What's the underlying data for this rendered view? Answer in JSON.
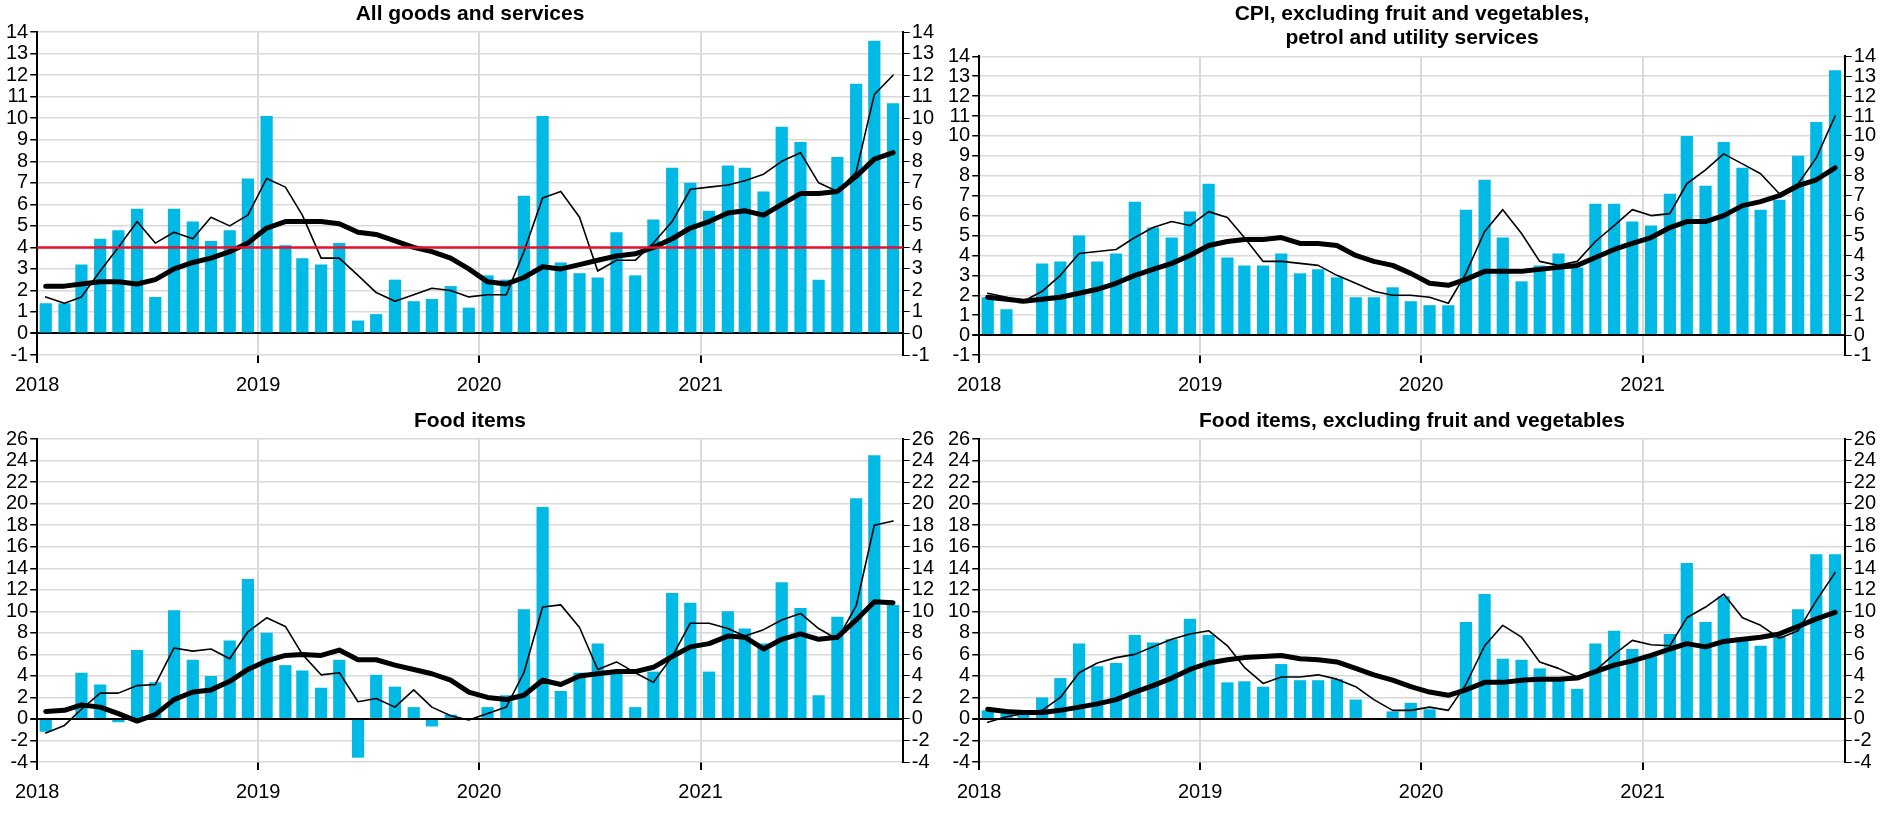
{
  "chart_data": [
    {
      "type": "bar",
      "title": "All goods and services",
      "x": [
        "2018-01-15",
        "2018-02-15",
        "2018-03-15",
        "2018-04-15",
        "2018-05-15",
        "2018-06-15",
        "2018-07-15",
        "2018-08-15",
        "2018-09-15",
        "2018-10-15",
        "2018-11-15",
        "2018-12-15",
        "2019-01-15",
        "2019-02-15",
        "2019-03-15",
        "2019-04-15",
        "2019-05-15",
        "2019-06-15",
        "2019-07-15",
        "2019-08-15",
        "2019-09-15",
        "2019-10-15",
        "2019-11-15",
        "2019-12-15",
        "2020-01-15",
        "2020-02-15",
        "2020-03-15",
        "2020-04-15",
        "2020-05-15",
        "2020-06-15",
        "2020-07-15",
        "2020-08-15",
        "2020-09-15",
        "2020-10-15",
        "2020-11-15",
        "2020-12-15",
        "2021-01-15",
        "2021-02-15",
        "2021-03-15",
        "2021-04-15",
        "2021-05-15",
        "2021-06-15",
        "2021-07-15",
        "2021-08-15",
        "2021-09-15",
        "2021-10-15",
        "2021-11-15"
      ],
      "series": [
        {
          "color": "#00b9e4",
          "values": [
            1.4,
            1.4,
            3.2,
            4.4,
            4.8,
            5.8,
            1.7,
            5.8,
            5.2,
            4.3,
            4.8,
            7.2,
            10.1,
            4.1,
            3.5,
            3.2,
            4.2,
            0.6,
            0.9,
            2.5,
            1.5,
            1.6,
            2.2,
            1.2,
            2.7,
            2.5,
            6.4,
            10.1,
            3.3,
            2.8,
            2.6,
            4.7,
            2.7,
            5.3,
            7.7,
            7.0,
            5.7,
            7.8,
            7.7,
            6.6,
            9.6,
            8.9,
            2.5,
            8.2,
            11.6,
            13.6,
            10.7
          ]
        },
        {
          "type": "line",
          "color": "#000000",
          "values": [
            1.7,
            1.4,
            1.7,
            2.9,
            4.0,
            5.2,
            4.2,
            4.7,
            4.4,
            5.4,
            5.0,
            5.5,
            7.2,
            6.8,
            5.5,
            3.5,
            3.5,
            2.7,
            1.9,
            1.5,
            1.8,
            2.1,
            2.0,
            1.7,
            1.8,
            1.8,
            3.8,
            6.3,
            6.6,
            5.4,
            2.9,
            3.4,
            3.4,
            4.2,
            5.2,
            6.7,
            6.8,
            6.9,
            7.1,
            7.4,
            8.0,
            8.4,
            7.0,
            6.6,
            7.5,
            11.1,
            12.0
          ]
        },
        {
          "type": "line",
          "color": "#000000",
          "values": [
            2.2,
            2.2,
            2.3,
            2.4,
            2.4,
            2.3,
            2.5,
            3.0,
            3.3,
            3.5,
            3.8,
            4.2,
            4.9,
            5.2,
            5.2,
            5.2,
            5.1,
            4.7,
            4.6,
            4.3,
            4.0,
            3.8,
            3.5,
            3.0,
            2.4,
            2.3,
            2.6,
            3.1,
            3.0,
            3.2,
            3.4,
            3.6,
            3.7,
            4.0,
            4.4,
            4.9,
            5.2,
            5.6,
            5.7,
            5.5,
            6.0,
            6.5,
            6.5,
            6.6,
            7.3,
            8.1,
            8.4
          ]
        }
      ],
      "xlim": [
        "2018-01",
        "2021-12"
      ],
      "xticks": [
        "2018",
        "2019",
        "2020",
        "2021"
      ],
      "ylim": [
        -1,
        14
      ],
      "yticks": [
        -1,
        0,
        1,
        2,
        3,
        4,
        5,
        6,
        7,
        8,
        9,
        10,
        11,
        12,
        13,
        14
      ],
      "y2lim": [
        -1,
        14
      ],
      "y2ticks": [
        -1,
        0,
        1,
        2,
        3,
        4,
        5,
        6,
        7,
        8,
        9,
        10,
        11,
        12,
        13,
        14
      ],
      "ref_lines": [
        {
          "axis": "y",
          "value": 4,
          "color": "#e8112d"
        }
      ],
      "grid": true,
      "legend": false,
      "marker": "none",
      "line_style": "solid"
    },
    {
      "type": "bar",
      "title": "CPI, excluding fruit and vegetables,\npetrol and utility services",
      "x": [
        "2018-01-15",
        "2018-02-15",
        "2018-03-15",
        "2018-04-15",
        "2018-05-15",
        "2018-06-15",
        "2018-07-15",
        "2018-08-15",
        "2018-09-15",
        "2018-10-15",
        "2018-11-15",
        "2018-12-15",
        "2019-01-15",
        "2019-02-15",
        "2019-03-15",
        "2019-04-15",
        "2019-05-15",
        "2019-06-15",
        "2019-07-15",
        "2019-08-15",
        "2019-09-15",
        "2019-10-15",
        "2019-11-15",
        "2019-12-15",
        "2020-01-15",
        "2020-02-15",
        "2020-03-15",
        "2020-04-15",
        "2020-05-15",
        "2020-06-15",
        "2020-07-15",
        "2020-08-15",
        "2020-09-15",
        "2020-10-15",
        "2020-11-15",
        "2020-12-15",
        "2021-01-15",
        "2021-02-15",
        "2021-03-15",
        "2021-04-15",
        "2021-05-15",
        "2021-06-15",
        "2021-07-15",
        "2021-08-15",
        "2021-09-15",
        "2021-10-15",
        "2021-11-15"
      ],
      "series": [
        {
          "color": "#00b9e4",
          "values": [
            1.9,
            1.3,
            null,
            3.6,
            3.7,
            5.0,
            3.7,
            4.1,
            6.7,
            5.4,
            4.9,
            6.2,
            7.6,
            3.9,
            3.5,
            3.5,
            4.1,
            3.1,
            3.3,
            2.9,
            1.9,
            1.9,
            2.4,
            1.7,
            1.5,
            1.5,
            6.3,
            7.8,
            4.9,
            2.7,
            3.5,
            4.1,
            3.4,
            6.6,
            6.6,
            5.7,
            5.5,
            7.1,
            10.0,
            7.5,
            9.7,
            8.4,
            6.3,
            6.8,
            9.0,
            10.7,
            13.3
          ]
        },
        {
          "type": "line",
          "color": "#000000",
          "values": [
            2.1,
            1.9,
            1.7,
            2.2,
            3.0,
            4.1,
            4.2,
            4.3,
            4.9,
            5.4,
            5.7,
            5.5,
            6.2,
            5.9,
            4.9,
            3.7,
            3.7,
            3.6,
            3.5,
            3.0,
            2.6,
            2.2,
            2.0,
            2.0,
            1.9,
            1.6,
            3.1,
            5.2,
            6.3,
            5.1,
            3.7,
            3.5,
            3.7,
            4.7,
            5.5,
            6.3,
            6.0,
            6.1,
            7.6,
            8.3,
            9.1,
            8.6,
            8.1,
            7.1,
            7.6,
            8.9,
            11.0
          ]
        },
        {
          "type": "line",
          "color": "#000000",
          "values": [
            1.9,
            1.8,
            1.7,
            1.8,
            1.9,
            2.1,
            2.3,
            2.6,
            3.0,
            3.3,
            3.6,
            4.0,
            4.5,
            4.7,
            4.8,
            4.8,
            4.9,
            4.6,
            4.6,
            4.5,
            4.0,
            3.7,
            3.5,
            3.1,
            2.6,
            2.5,
            2.8,
            3.2,
            3.2,
            3.2,
            3.3,
            3.4,
            3.5,
            3.9,
            4.3,
            4.6,
            4.9,
            5.4,
            5.7,
            5.7,
            6.0,
            6.5,
            6.7,
            7.0,
            7.5,
            7.8,
            8.4
          ]
        }
      ],
      "xlim": [
        "2018-01",
        "2021-12"
      ],
      "xticks": [
        "2018",
        "2019",
        "2020",
        "2021"
      ],
      "ylim": [
        -1,
        14
      ],
      "yticks": [
        -1,
        0,
        1,
        2,
        3,
        4,
        5,
        6,
        7,
        8,
        9,
        10,
        11,
        12,
        13,
        14
      ],
      "y2lim": [
        -1,
        14
      ],
      "y2ticks": [
        -1,
        0,
        1,
        2,
        3,
        4,
        5,
        6,
        7,
        8,
        9,
        10,
        11,
        12,
        13,
        14
      ],
      "grid": true,
      "legend": false,
      "marker": "none",
      "line_style": "solid"
    },
    {
      "type": "bar",
      "title": "Food items",
      "x": [
        "2018-01-15",
        "2018-02-15",
        "2018-03-15",
        "2018-04-15",
        "2018-05-15",
        "2018-06-15",
        "2018-07-15",
        "2018-08-15",
        "2018-09-15",
        "2018-10-15",
        "2018-11-15",
        "2018-12-15",
        "2019-01-15",
        "2019-02-15",
        "2019-03-15",
        "2019-04-15",
        "2019-05-15",
        "2019-06-15",
        "2019-07-15",
        "2019-08-15",
        "2019-09-15",
        "2019-10-15",
        "2019-11-15",
        "2019-12-15",
        "2020-01-15",
        "2020-02-15",
        "2020-03-15",
        "2020-04-15",
        "2020-05-15",
        "2020-06-15",
        "2020-07-15",
        "2020-08-15",
        "2020-09-15",
        "2020-10-15",
        "2020-11-15",
        "2020-12-15",
        "2021-01-15",
        "2021-02-15",
        "2021-03-15",
        "2021-04-15",
        "2021-05-15",
        "2021-06-15",
        "2021-07-15",
        "2021-08-15",
        "2021-09-15",
        "2021-10-15",
        "2021-11-15"
      ],
      "series": [
        {
          "color": "#00b9e4",
          "values": [
            -1.2,
            0,
            4.3,
            3.2,
            -0.3,
            6.4,
            3.4,
            10.1,
            5.5,
            4.0,
            7.3,
            13.0,
            8.0,
            5.0,
            4.5,
            2.9,
            5.5,
            -3.6,
            4.1,
            3.0,
            1.1,
            -0.7,
            0.4,
            0,
            1.1,
            2.2,
            10.2,
            19.7,
            2.6,
            4.3,
            7.0,
            4.3,
            1.1,
            4.4,
            11.7,
            10.8,
            4.4,
            10.0,
            8.4,
            7.0,
            12.7,
            10.3,
            2.2,
            9.5,
            20.5,
            24.5,
            10.6
          ]
        },
        {
          "type": "line",
          "color": "#000000",
          "values": [
            -1.3,
            -0.6,
            0.9,
            2.4,
            2.4,
            3.1,
            3.2,
            6.6,
            6.3,
            6.5,
            5.6,
            8.1,
            9.4,
            8.6,
            6.0,
            4.1,
            4.3,
            1.6,
            1.9,
            1.1,
            2.7,
            1.1,
            0.3,
            -0.1,
            0.5,
            1.1,
            4.3,
            10.4,
            10.6,
            8.5,
            4.6,
            5.3,
            4.3,
            3.4,
            5.8,
            8.9,
            8.9,
            8.4,
            7.7,
            8.3,
            9.2,
            9.8,
            8.4,
            7.4,
            10.5,
            18.0,
            18.4
          ]
        },
        {
          "type": "line",
          "color": "#000000",
          "values": [
            0.7,
            0.8,
            1.3,
            1.1,
            0.5,
            -0.2,
            0.4,
            1.8,
            2.5,
            2.7,
            3.5,
            4.6,
            5.4,
            5.9,
            6.0,
            5.9,
            6.4,
            5.5,
            5.5,
            5.0,
            4.6,
            4.2,
            3.6,
            2.5,
            2.0,
            1.8,
            2.2,
            3.6,
            3.2,
            4.0,
            4.2,
            4.4,
            4.4,
            4.8,
            5.8,
            6.7,
            7.0,
            7.7,
            7.6,
            6.5,
            7.4,
            7.9,
            7.4,
            7.6,
            9.2,
            10.9,
            10.8
          ]
        }
      ],
      "xlim": [
        "2018-01",
        "2021-12"
      ],
      "xticks": [
        "2018",
        "2019",
        "2020",
        "2021"
      ],
      "ylim": [
        -4,
        26
      ],
      "yticks": [
        -4,
        -2,
        0,
        2,
        4,
        6,
        8,
        10,
        12,
        14,
        16,
        18,
        20,
        22,
        24,
        26
      ],
      "y2lim": [
        -4,
        26
      ],
      "y2ticks": [
        -4,
        -2,
        0,
        2,
        4,
        6,
        8,
        10,
        12,
        14,
        16,
        18,
        20,
        22,
        24,
        26
      ],
      "grid": true,
      "legend": false,
      "marker": "none",
      "line_style": "solid"
    },
    {
      "type": "bar",
      "title": "Food items, excluding fruit and vegetables",
      "x": [
        "2018-01-15",
        "2018-02-15",
        "2018-03-15",
        "2018-04-15",
        "2018-05-15",
        "2018-06-15",
        "2018-07-15",
        "2018-08-15",
        "2018-09-15",
        "2018-10-15",
        "2018-11-15",
        "2018-12-15",
        "2019-01-15",
        "2019-02-15",
        "2019-03-15",
        "2019-04-15",
        "2019-05-15",
        "2019-06-15",
        "2019-07-15",
        "2019-08-15",
        "2019-09-15",
        "2019-10-15",
        "2019-11-15",
        "2019-12-15",
        "2020-01-15",
        "2020-02-15",
        "2020-03-15",
        "2020-04-15",
        "2020-05-15",
        "2020-06-15",
        "2020-07-15",
        "2020-08-15",
        "2020-09-15",
        "2020-10-15",
        "2020-11-15",
        "2020-12-15",
        "2021-01-15",
        "2021-02-15",
        "2021-03-15",
        "2021-04-15",
        "2021-05-15",
        "2021-06-15",
        "2021-07-15",
        "2021-08-15",
        "2021-09-15",
        "2021-10-15",
        "2021-11-15"
      ],
      "series": [
        {
          "color": "#00b9e4",
          "values": [
            0.8,
            0.6,
            0.5,
            2.0,
            3.8,
            7.0,
            4.9,
            5.2,
            7.8,
            7.1,
            7.4,
            9.3,
            7.8,
            3.4,
            3.5,
            3.0,
            5.1,
            3.6,
            3.6,
            3.7,
            1.8,
            0,
            0.7,
            1.5,
            0.9,
            0,
            9.0,
            11.6,
            5.6,
            5.5,
            4.7,
            3.7,
            2.8,
            7.0,
            8.2,
            6.5,
            6.0,
            7.9,
            14.5,
            9.0,
            11.4,
            7.6,
            6.8,
            7.7,
            10.2,
            15.3,
            15.3
          ]
        },
        {
          "type": "line",
          "color": "#000000",
          "values": [
            -0.3,
            0.2,
            0.5,
            0.8,
            2.0,
            4.3,
            5.2,
            5.7,
            6.0,
            6.7,
            7.4,
            7.9,
            8.2,
            6.8,
            4.8,
            3.3,
            3.9,
            3.9,
            4.1,
            3.7,
            3.0,
            1.8,
            0.8,
            0.8,
            1.1,
            0.8,
            3.2,
            6.8,
            8.7,
            7.6,
            5.3,
            4.7,
            3.9,
            4.5,
            6.0,
            7.3,
            6.9,
            6.8,
            9.4,
            10.4,
            11.6,
            9.4,
            8.7,
            7.5,
            8.2,
            11.0,
            13.6
          ]
        },
        {
          "type": "line",
          "color": "#000000",
          "values": [
            0.9,
            0.7,
            0.6,
            0.6,
            0.8,
            1.1,
            1.4,
            1.8,
            2.5,
            3.1,
            3.8,
            4.6,
            5.2,
            5.5,
            5.7,
            5.8,
            5.9,
            5.6,
            5.5,
            5.3,
            4.7,
            4.1,
            3.6,
            3.0,
            2.5,
            2.2,
            2.7,
            3.4,
            3.4,
            3.6,
            3.7,
            3.7,
            3.8,
            4.4,
            5.0,
            5.4,
            5.9,
            6.5,
            7.0,
            6.7,
            7.2,
            7.4,
            7.6,
            7.9,
            8.6,
            9.3,
            9.9
          ]
        }
      ],
      "xlim": [
        "2018-01",
        "2021-12"
      ],
      "xticks": [
        "2018",
        "2019",
        "2020",
        "2021"
      ],
      "ylim": [
        -4,
        26
      ],
      "yticks": [
        -4,
        -2,
        0,
        2,
        4,
        6,
        8,
        10,
        12,
        14,
        16,
        18,
        20,
        22,
        24,
        26
      ],
      "y2lim": [
        -4,
        26
      ],
      "y2ticks": [
        -4,
        -2,
        0,
        2,
        4,
        6,
        8,
        10,
        12,
        14,
        16,
        18,
        20,
        22,
        24,
        26
      ],
      "grid": true,
      "legend": false,
      "marker": "none",
      "line_style": "solid"
    }
  ]
}
